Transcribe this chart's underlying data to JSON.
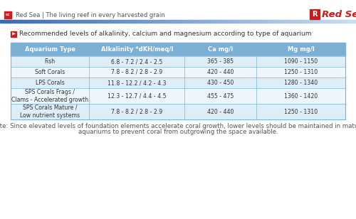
{
  "header_text": "Red Sea | The living reef in every harvested grain",
  "title": "Recommended levels of alkalinity, calcium and magnesium according to type of aquarium",
  "col_headers": [
    "Aquarium Type",
    "Alkalinity *dKH/meq/l",
    "Ca mg/l",
    "Mg mg/l"
  ],
  "rows": [
    [
      "Fish",
      "6.8 - 7.2 / 2.4 - 2.5",
      "365 - 385",
      "1090 - 1150"
    ],
    [
      "Soft Corals",
      "7.8 - 8.2 / 2.8 - 2.9",
      "420 - 440",
      "1250 - 1310"
    ],
    [
      "LPS Corals",
      "11.8 - 12.2 / 4.2 - 4.3",
      "430 - 450",
      "1280 - 1340"
    ],
    [
      "SPS Corals Frags /\nClams - Accelerated growth",
      "12.3 - 12.7 / 4.4 - 4.5",
      "455 - 475",
      "1360 - 1420"
    ],
    [
      "SPS Corals Mature /\nLow nutrient systems",
      "7.8 - 8.2 / 2.8 - 2.9",
      "420 - 440",
      "1250 - 1310"
    ]
  ],
  "note_line1": "Note: Since elevated levels of foundation elements accelerate coral growth, lower levels should be maintained in mature",
  "note_line2": "aquariums to prevent coral from outgrowing the space available.",
  "header_bg": "#7bafd4",
  "row_bg_even": "#ddeef8",
  "row_bg_odd": "#eef6fb",
  "table_border_color": "#7ab4d8",
  "top_bar_color_left": "#3a6ab0",
  "top_bar_color_right": "#c8dff0",
  "header_bar_color": "#cc2020",
  "title_arrow_color": "#cc2020",
  "note_fontsize": 6.2,
  "background_color": "#ffffff",
  "header_text_color": "#555555",
  "logo_red": "#cc1a1a",
  "logo_blue": "#1a3a8a"
}
